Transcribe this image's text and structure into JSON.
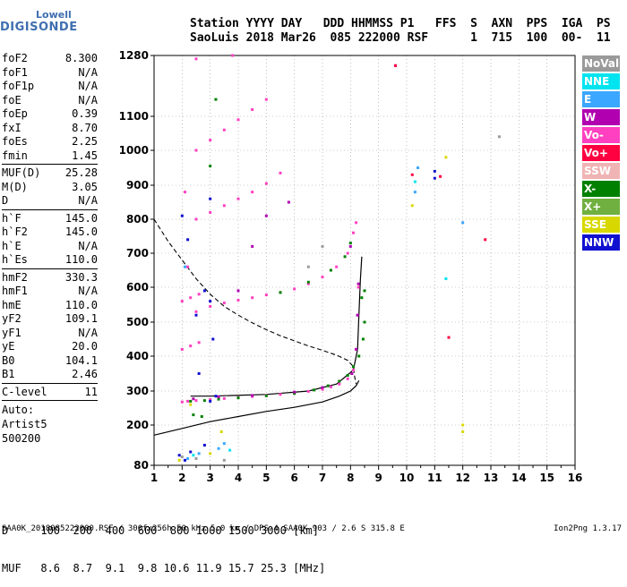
{
  "logo": {
    "line1": "Lowell",
    "line2": "DIGISONDE"
  },
  "header": {
    "labels": "Station YYYY DAY   DDD HHMMSS P1   FFS  S  AXN  PPS  IGA  PS",
    "values": "SaoLuis 2018 Mar26  085 222000 RSF      1  715  100  00-  11"
  },
  "params": {
    "group1": [
      {
        "k": "foF2",
        "v": "8.300"
      },
      {
        "k": "foF1",
        "v": "N/A"
      },
      {
        "k": "foF1p",
        "v": "N/A"
      },
      {
        "k": "foE",
        "v": "N/A"
      },
      {
        "k": "foEp",
        "v": "0.39"
      },
      {
        "k": "fxI",
        "v": "8.70"
      },
      {
        "k": "foEs",
        "v": "2.25"
      },
      {
        "k": "fmin",
        "v": "1.45"
      }
    ],
    "group2": [
      {
        "k": "MUF(D)",
        "v": "25.28"
      },
      {
        "k": "M(D)",
        "v": "3.05"
      },
      {
        "k": "D",
        "v": "N/A"
      }
    ],
    "group3": [
      {
        "k": "h`F",
        "v": "145.0"
      },
      {
        "k": "h`F2",
        "v": "145.0"
      },
      {
        "k": "h`E",
        "v": "N/A"
      },
      {
        "k": "h`Es",
        "v": "110.0"
      }
    ],
    "group4": [
      {
        "k": "hmF2",
        "v": "330.3"
      },
      {
        "k": "hmF1",
        "v": "N/A"
      },
      {
        "k": "hmE",
        "v": "110.0"
      },
      {
        "k": "yF2",
        "v": "109.1"
      },
      {
        "k": "yF1",
        "v": "N/A"
      },
      {
        "k": "yE",
        "v": "20.0"
      },
      {
        "k": "B0",
        "v": "104.1"
      },
      {
        "k": "B1",
        "v": "2.46"
      }
    ],
    "clevel": {
      "k": "C-level",
      "v": "11"
    },
    "auto": [
      "Auto:",
      "Artist5",
      "500200"
    ]
  },
  "legend": [
    {
      "label": "NoVal",
      "color": "#9a9a9a"
    },
    {
      "label": "NNE",
      "color": "#00e4f0"
    },
    {
      "label": "E",
      "color": "#3ba7ff"
    },
    {
      "label": "W",
      "color": "#b000b0"
    },
    {
      "label": "Vo-",
      "color": "#ff40c0"
    },
    {
      "label": "Vo+",
      "color": "#ff0040"
    },
    {
      "label": "SSW",
      "color": "#f0b4b4"
    },
    {
      "label": "X-",
      "color": "#008000"
    },
    {
      "label": "X+",
      "color": "#70b040"
    },
    {
      "label": "SSE",
      "color": "#d8d800"
    },
    {
      "label": "NNW",
      "color": "#1010d0"
    }
  ],
  "bottom": {
    "d_row": "D     100  200  400  600  800 1000 1500 3000 [km]",
    "muf_row": "MUF   8.6  8.7  9.1  9.8 10.6 11.9 15.7 25.3 [MHz]"
  },
  "footer": {
    "left": "SAA0K_2018085222000.RSF / 300fx256h 50 kHz 5.0 km / DPS-4 SAA0K 903 / 2.6 S 315.8 E",
    "right": "Ion2Png 1.3.17"
  },
  "chart_data": {
    "type": "scatter",
    "title": "",
    "xlabel": "",
    "ylabel": "",
    "xlim": [
      1,
      16
    ],
    "ylim": [
      80,
      1280
    ],
    "xticks": [
      1,
      2,
      3,
      4,
      5,
      6,
      7,
      8,
      9,
      10,
      11,
      12,
      13,
      14,
      15,
      16
    ],
    "yticks": [
      80,
      200,
      300,
      400,
      500,
      600,
      700,
      800,
      900,
      1000,
      1100,
      1280
    ],
    "grid": true,
    "series": [
      {
        "color": "#ff40c0",
        "points": [
          [
            2.0,
            268
          ],
          [
            2.2,
            270
          ],
          [
            2.5,
            272
          ],
          [
            3,
            275
          ],
          [
            3.5,
            278
          ],
          [
            4,
            281
          ],
          [
            4.5,
            284
          ],
          [
            5,
            287
          ],
          [
            5.5,
            290
          ],
          [
            6,
            294
          ],
          [
            6.5,
            299
          ],
          [
            7,
            305
          ],
          [
            7.3,
            312
          ],
          [
            7.6,
            320
          ],
          [
            7.9,
            335
          ],
          [
            8.1,
            360
          ],
          [
            8.2,
            420
          ],
          [
            8.25,
            520
          ],
          [
            8.28,
            600
          ],
          [
            2.5,
            530
          ],
          [
            3,
            545
          ],
          [
            3.5,
            555
          ],
          [
            4,
            563
          ],
          [
            4.5,
            570
          ],
          [
            5,
            578
          ],
          [
            5.5,
            585
          ],
          [
            6,
            595
          ],
          [
            6.5,
            610
          ],
          [
            7,
            630
          ],
          [
            7.5,
            660
          ],
          [
            7.9,
            700
          ],
          [
            8.1,
            760
          ],
          [
            8.2,
            790
          ],
          [
            2.5,
            800
          ],
          [
            3,
            820
          ],
          [
            3.5,
            840
          ],
          [
            4,
            860
          ],
          [
            4.5,
            880
          ],
          [
            5,
            905
          ],
          [
            5.5,
            935
          ],
          [
            2.5,
            1000
          ],
          [
            3,
            1030
          ],
          [
            3.5,
            1060
          ],
          [
            4,
            1090
          ],
          [
            4.5,
            1120
          ],
          [
            5,
            1150
          ],
          [
            2.0,
            420
          ],
          [
            2.3,
            430
          ],
          [
            2.6,
            440
          ],
          [
            2.0,
            560
          ],
          [
            2.3,
            570
          ],
          [
            2.6,
            580
          ],
          [
            2.5,
            1270
          ],
          [
            3.8,
            1280
          ],
          [
            2.1,
            880
          ],
          [
            2.2,
            660
          ]
        ]
      },
      {
        "color": "#008000",
        "points": [
          [
            2.3,
            270
          ],
          [
            2.8,
            272
          ],
          [
            3.3,
            276
          ],
          [
            4,
            280
          ],
          [
            5,
            286
          ],
          [
            6,
            293
          ],
          [
            6.7,
            303
          ],
          [
            7.2,
            315
          ],
          [
            7.6,
            328
          ],
          [
            7.9,
            345
          ],
          [
            8.1,
            370
          ],
          [
            8.3,
            400
          ],
          [
            8.45,
            450
          ],
          [
            8.5,
            500
          ],
          [
            5.5,
            585
          ],
          [
            6.5,
            615
          ],
          [
            7.3,
            650
          ],
          [
            7.8,
            690
          ],
          [
            8.0,
            730
          ],
          [
            8.4,
            570
          ],
          [
            8.5,
            590
          ],
          [
            3,
            955
          ],
          [
            3.2,
            1150
          ],
          [
            2.4,
            230
          ],
          [
            2.7,
            225
          ]
        ]
      },
      {
        "color": "#b000b0",
        "points": [
          [
            2.4,
            277
          ],
          [
            3.3,
            283
          ],
          [
            4.5,
            287
          ],
          [
            6,
            297
          ],
          [
            7,
            310
          ],
          [
            8.05,
            350
          ],
          [
            8.2,
            420
          ],
          [
            8.25,
            520
          ],
          [
            8.28,
            610
          ],
          [
            8.0,
            720
          ],
          [
            4,
            590
          ],
          [
            4.5,
            720
          ],
          [
            5,
            810
          ],
          [
            5.8,
            850
          ],
          [
            9.6,
            1250
          ]
        ]
      },
      {
        "color": "#1010d0",
        "points": [
          [
            2.1,
            95
          ],
          [
            1.9,
            110
          ],
          [
            2.3,
            120
          ],
          [
            2.8,
            140
          ],
          [
            3,
            270
          ],
          [
            3.2,
            285
          ],
          [
            2.5,
            520
          ],
          [
            3,
            560
          ],
          [
            2.2,
            740
          ],
          [
            2.8,
            590
          ],
          [
            3.1,
            450
          ],
          [
            2.0,
            810
          ],
          [
            3.0,
            860
          ],
          [
            11.0,
            940
          ],
          [
            11.0,
            920
          ],
          [
            2.6,
            350
          ]
        ]
      },
      {
        "color": "#3ba7ff",
        "points": [
          [
            2.2,
            100
          ],
          [
            2.6,
            115
          ],
          [
            3.3,
            130
          ],
          [
            10.3,
            880
          ],
          [
            10.4,
            950
          ],
          [
            12.0,
            790
          ],
          [
            2.1,
            660
          ],
          [
            3.5,
            145
          ]
        ]
      },
      {
        "color": "#d8d800",
        "points": [
          [
            1.9,
            95
          ],
          [
            3.0,
            115
          ],
          [
            3.4,
            180
          ],
          [
            10.2,
            840
          ],
          [
            11.4,
            980
          ],
          [
            12.0,
            200
          ],
          [
            12.0,
            180
          ],
          [
            2.3,
            260
          ]
        ]
      },
      {
        "color": "#ff0040",
        "points": [
          [
            11.5,
            455
          ],
          [
            11.2,
            925
          ],
          [
            10.2,
            930
          ],
          [
            9.6,
            1250
          ],
          [
            12.8,
            740
          ]
        ]
      },
      {
        "color": "#00e4f0",
        "points": [
          [
            2.4,
            110
          ],
          [
            3.7,
            125
          ],
          [
            10.3,
            910
          ],
          [
            11.4,
            625
          ]
        ]
      },
      {
        "color": "#9a9a9a",
        "points": [
          [
            2.0,
            105
          ],
          [
            2.5,
            100
          ],
          [
            3.5,
            95
          ],
          [
            13.3,
            1040
          ],
          [
            6.5,
            660
          ],
          [
            7.0,
            720
          ]
        ]
      }
    ]
  }
}
